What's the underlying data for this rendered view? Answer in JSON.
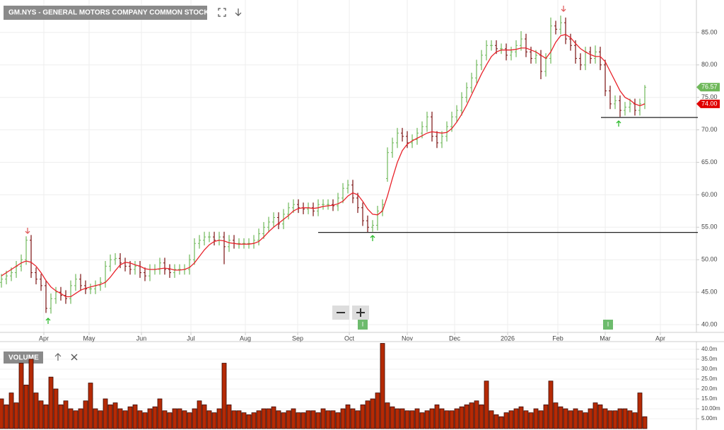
{
  "chart_data": [
    {
      "type": "ohlc",
      "title": "GM.NYS - GENERAL MOTORS COMPANY COMMON STOCK",
      "x": [
        0,
        1,
        2,
        3,
        4,
        5,
        6,
        7,
        8,
        9,
        10,
        11,
        12,
        13,
        14,
        15,
        16,
        17,
        18,
        19,
        20,
        21,
        22,
        23,
        24,
        25,
        26,
        27,
        28,
        29,
        30,
        31,
        32,
        33,
        34,
        35,
        36,
        37,
        38,
        39,
        40,
        41,
        42,
        43,
        44,
        45,
        46,
        47,
        48,
        49,
        50,
        51,
        52,
        53,
        54,
        55,
        56,
        57,
        58,
        59,
        60,
        61,
        62,
        63,
        64,
        65,
        66,
        67,
        68,
        69,
        70,
        71,
        72,
        73,
        74,
        75,
        76,
        77,
        78,
        79,
        80,
        81,
        82,
        83,
        84,
        85,
        86,
        87,
        88,
        89,
        90,
        91,
        92,
        93,
        94,
        95,
        96,
        97,
        98,
        99,
        100,
        101,
        102,
        103,
        104,
        105,
        106,
        107,
        108,
        109,
        110,
        111,
        112,
        113,
        114,
        115,
        116,
        117,
        118,
        119,
        120,
        121,
        122,
        123,
        124,
        125,
        126,
        127,
        128,
        129,
        130
      ],
      "open": [
        46.5,
        47,
        47.5,
        48,
        49,
        50,
        53,
        48,
        47,
        46,
        42.5,
        44,
        45,
        44.5,
        44,
        46,
        47,
        46,
        45.5,
        45.5,
        46,
        46.5,
        49,
        50,
        50.2,
        49.5,
        49,
        48.5,
        49,
        48,
        47.5,
        48.5,
        48.5,
        49.5,
        48.5,
        48,
        48.5,
        48.5,
        48.5,
        50,
        52.5,
        53,
        53.5,
        53.5,
        53,
        53.5,
        52,
        53,
        52.5,
        52.5,
        52.5,
        52.5,
        53,
        54,
        55,
        55.8,
        56.5,
        55.5,
        57,
        58,
        58.5,
        58,
        57.8,
        58,
        57.5,
        58.5,
        58.5,
        58.5,
        58.3,
        59.5,
        61,
        61.5,
        59.5,
        58,
        56,
        55,
        55.3,
        57.5,
        62.5,
        66.5,
        68,
        69.5,
        69,
        68,
        68.5,
        69.5,
        70.5,
        72,
        69,
        68,
        69,
        70.5,
        72,
        73,
        75,
        76.5,
        78,
        80,
        81.5,
        83,
        83,
        82.5,
        82.5,
        81.5,
        82,
        83,
        84,
        82,
        81,
        81.5,
        79,
        81,
        86,
        85.5,
        86.5,
        84,
        83,
        81,
        80,
        82,
        81,
        82,
        80,
        76,
        74,
        74.5,
        73,
        73.5,
        74,
        73,
        74
      ],
      "high": [
        47.8,
        48.3,
        48.8,
        49.8,
        50.8,
        53.6,
        53.8,
        48.8,
        47.8,
        46.8,
        44.8,
        45.8,
        45.8,
        45.3,
        46.8,
        47.8,
        47.8,
        46.8,
        46.3,
        46.8,
        47.3,
        49.8,
        50.8,
        51,
        51,
        50.3,
        49.8,
        49.8,
        49.8,
        48.8,
        49.3,
        49.3,
        50.3,
        50.3,
        49.3,
        49.3,
        49.3,
        49.3,
        50.8,
        53.3,
        53.8,
        54.3,
        54.3,
        54.3,
        54.3,
        54.3,
        53.8,
        53.8,
        53.3,
        53.3,
        53.3,
        53.8,
        54.8,
        55.8,
        56.6,
        57.3,
        57.3,
        57.8,
        58.8,
        59.3,
        59.3,
        58.8,
        58.8,
        58.8,
        59.3,
        59.3,
        59.3,
        59.3,
        60.3,
        61.8,
        62.3,
        62.3,
        60.3,
        58.8,
        56.8,
        56.1,
        58.3,
        59.3,
        67.3,
        68.8,
        70.3,
        70.3,
        69.8,
        69.3,
        70.3,
        71.3,
        72.8,
        72.8,
        69.8,
        69.8,
        71.3,
        72.8,
        73.8,
        75.8,
        77.3,
        78.8,
        80.8,
        82.3,
        83.8,
        83.8,
        83.8,
        83.3,
        83.3,
        82.8,
        83.8,
        85.2,
        84.8,
        82.8,
        82.3,
        82.3,
        81.8,
        87.3,
        86.8,
        87.6,
        87.3,
        84.8,
        83.8,
        81.8,
        82.8,
        82.8,
        83,
        82.8,
        80.8,
        76.8,
        75.3,
        75.3,
        74.3,
        74.8,
        74.8,
        74.8,
        76.9
      ],
      "low": [
        45.7,
        46.2,
        46.7,
        47.2,
        48.2,
        49.2,
        47.2,
        46.2,
        45.2,
        41.8,
        41.7,
        43.2,
        43.7,
        43.2,
        43.2,
        45.2,
        45.2,
        44.7,
        44.7,
        44.7,
        45.2,
        45.7,
        48.2,
        49.2,
        48.7,
        48.2,
        47.7,
        47.7,
        47.2,
        46.7,
        46.7,
        47.7,
        47.7,
        47.7,
        47.2,
        47.2,
        47.7,
        47.7,
        47.7,
        49.2,
        51.7,
        52.2,
        52.7,
        52.2,
        52.2,
        49.3,
        51.2,
        51.7,
        51.7,
        51.7,
        51.7,
        51.7,
        52.2,
        53.2,
        54.2,
        55,
        54.7,
        54.7,
        56.2,
        57.2,
        57.2,
        57,
        57,
        56.7,
        56.7,
        57.7,
        57.7,
        57.5,
        57.5,
        58.7,
        60.2,
        58.7,
        57.2,
        55.2,
        54.2,
        54.3,
        54.5,
        56.7,
        62,
        65.7,
        67.2,
        68.2,
        67.2,
        67.2,
        67.7,
        68.7,
        69.7,
        68.2,
        67.2,
        67.2,
        68.2,
        69.7,
        71.2,
        72.2,
        74.2,
        75.7,
        77.2,
        79.2,
        80.7,
        82.2,
        81.7,
        81.7,
        80.7,
        80.7,
        81.2,
        82.2,
        81.2,
        80.2,
        80.2,
        77.8,
        78.2,
        80.2,
        84.7,
        84.7,
        83.2,
        82.2,
        80.2,
        79.2,
        79.2,
        80.2,
        80.2,
        79.2,
        75.2,
        73.2,
        73.2,
        72,
        72.2,
        72.7,
        72.2,
        72.2,
        73.2
      ],
      "close": [
        47,
        47.5,
        48,
        49,
        50,
        53,
        48,
        47,
        46,
        42.5,
        44,
        45,
        44.5,
        44,
        46,
        47,
        46,
        45.5,
        45.5,
        46,
        46.5,
        49,
        50,
        50.2,
        49.5,
        49,
        48.5,
        49,
        48,
        47.5,
        48.5,
        48.5,
        49.5,
        48.5,
        48,
        48.5,
        48.5,
        48.5,
        50,
        52.5,
        53,
        53.5,
        53.5,
        53,
        53.5,
        52,
        53,
        52.5,
        52.5,
        52.5,
        52.5,
        53,
        54,
        55,
        55.8,
        56.5,
        55.5,
        57,
        58,
        58.5,
        58,
        57.8,
        58,
        57.5,
        58.5,
        58.5,
        58.5,
        58.3,
        59.5,
        61,
        61.5,
        59.5,
        58,
        56,
        55,
        55.3,
        57.5,
        58.5,
        66.5,
        68,
        69.5,
        69,
        68,
        68.5,
        69.5,
        70.5,
        72,
        69,
        68,
        69,
        70.5,
        72,
        73,
        75,
        76.5,
        78,
        80,
        81.5,
        83,
        83,
        82.5,
        82.5,
        81.5,
        82,
        83,
        84,
        82,
        81,
        81.5,
        79,
        81,
        86,
        85.5,
        86.5,
        84,
        83,
        81,
        80,
        82,
        81,
        82,
        80,
        76,
        74,
        74.5,
        73,
        73.5,
        74,
        73,
        74,
        76.57
      ],
      "up_color": "#6fb85a",
      "down_color": "#7a1010",
      "ma": {
        "color": "#e8222a",
        "values": [
          47.5,
          48,
          48.5,
          49,
          49.5,
          49.8,
          49.6,
          49,
          48,
          46.8,
          45.8,
          45.2,
          44.8,
          44.3,
          44.3,
          44.8,
          45.3,
          45.6,
          45.8,
          46,
          46.2,
          46.5,
          47.3,
          48.3,
          49.2,
          49.6,
          49.5,
          49.2,
          49,
          48.6,
          48.5,
          48.5,
          48.6,
          48.7,
          48.6,
          48.4,
          48.4,
          48.5,
          48.8,
          49.5,
          50.5,
          51.5,
          52.3,
          52.8,
          53,
          52.9,
          52.6,
          52.5,
          52.4,
          52.4,
          52.4,
          52.5,
          52.8,
          53.5,
          54.3,
          55,
          55.6,
          56.2,
          56.8,
          57.5,
          57.9,
          58,
          58,
          57.9,
          58,
          58.2,
          58.3,
          58.4,
          58.6,
          59,
          59.8,
          60.3,
          60,
          59,
          57.8,
          57,
          56.9,
          57.5,
          59.8,
          62.5,
          65,
          66.8,
          67.8,
          68.3,
          68.7,
          69.1,
          69.5,
          69.7,
          69.6,
          69.5,
          69.6,
          70.2,
          71.2,
          72.4,
          73.8,
          75.4,
          77,
          78.6,
          80,
          81.3,
          82,
          82.3,
          82.3,
          82.3,
          82.4,
          82.6,
          82.6,
          82.3,
          82,
          81.5,
          81,
          82,
          83.5,
          84.5,
          84.7,
          84.2,
          83.3,
          82.5,
          82,
          81.6,
          81.3,
          81.3,
          80.5,
          79,
          77.5,
          76,
          75,
          74.6,
          74,
          73.7,
          74
        ]
      },
      "last_price": 76.57,
      "ma_last": {
        "value": 74,
        "label": "74.00"
      },
      "hlines": [
        54.2,
        71.9
      ],
      "events": [
        "I",
        "I"
      ],
      "xlim": [
        -0.29,
        140.43
      ],
      "xticks": [
        {
          "value": 8.57,
          "label": "Apr"
        },
        {
          "value": 17.71,
          "label": "May"
        },
        {
          "value": 28.29,
          "label": "Jun"
        },
        {
          "value": 38.29,
          "label": "Jul"
        },
        {
          "value": 49.29,
          "label": "Aug"
        },
        {
          "value": 59.86,
          "label": "Sep"
        },
        {
          "value": 70.29,
          "label": "Oct"
        },
        {
          "value": 82,
          "label": "Nov"
        },
        {
          "value": 91.57,
          "label": "Dec"
        },
        {
          "value": 102.29,
          "label": "2026"
        },
        {
          "value": 112.43,
          "label": "Feb"
        },
        {
          "value": 122,
          "label": "Mar"
        },
        {
          "value": 133.14,
          "label": "Apr"
        }
      ],
      "ylim": [
        38.8,
        90
      ],
      "yticks": [
        {
          "value": 40,
          "label": "40.00"
        },
        {
          "value": 45,
          "label": "45.00"
        },
        {
          "value": 50,
          "label": "50.00"
        },
        {
          "value": 55,
          "label": "55.00"
        },
        {
          "value": 60,
          "label": "60.00"
        },
        {
          "value": 65,
          "label": "65.00"
        },
        {
          "value": 70,
          "label": "70.00"
        },
        {
          "value": 75,
          "label": "75.00"
        },
        {
          "value": 80,
          "label": "80.00"
        },
        {
          "value": 85,
          "label": "85.00"
        }
      ],
      "grid": true
    },
    {
      "type": "bar",
      "title": "VOLUME",
      "color": "#b52a05",
      "values": [
        15,
        12,
        18,
        13,
        33,
        22,
        35,
        18,
        14,
        12,
        26,
        20,
        12,
        14,
        10,
        9,
        10,
        14,
        23,
        10,
        9,
        15,
        12,
        13,
        10,
        9,
        11,
        12,
        9,
        8,
        10,
        11,
        15,
        9,
        8,
        10,
        10,
        9,
        8,
        10,
        14,
        12,
        9,
        8,
        10,
        33,
        12,
        9,
        9,
        8,
        7,
        8,
        9,
        10,
        10,
        11,
        9,
        8,
        9,
        10,
        8,
        8,
        9,
        9,
        8,
        10,
        9,
        9,
        8,
        10,
        12,
        10,
        9,
        12,
        14,
        15,
        18,
        43,
        13,
        11,
        10,
        10,
        9,
        9,
        10,
        8,
        9,
        10,
        12,
        10,
        9,
        9,
        10,
        11,
        12,
        13,
        14,
        12,
        24,
        9,
        7,
        6,
        8,
        9,
        10,
        11,
        9,
        8,
        10,
        9,
        12,
        24,
        13,
        11,
        10,
        9,
        10,
        9,
        8,
        10,
        13,
        12,
        10,
        9,
        9,
        10,
        10,
        9,
        8,
        18,
        6
      ],
      "ylim": [
        0,
        43.9
      ],
      "yticks": [
        {
          "value": 5,
          "label": "5.00m"
        },
        {
          "value": 10,
          "label": "10.00m"
        },
        {
          "value": 15,
          "label": "15.0m"
        },
        {
          "value": 20,
          "label": "20.0m"
        },
        {
          "value": 25,
          "label": "25.0m"
        },
        {
          "value": 30,
          "label": "30.0m"
        },
        {
          "value": 35,
          "label": "35.0m"
        },
        {
          "value": 40,
          "label": "40.0m"
        }
      ]
    }
  ]
}
